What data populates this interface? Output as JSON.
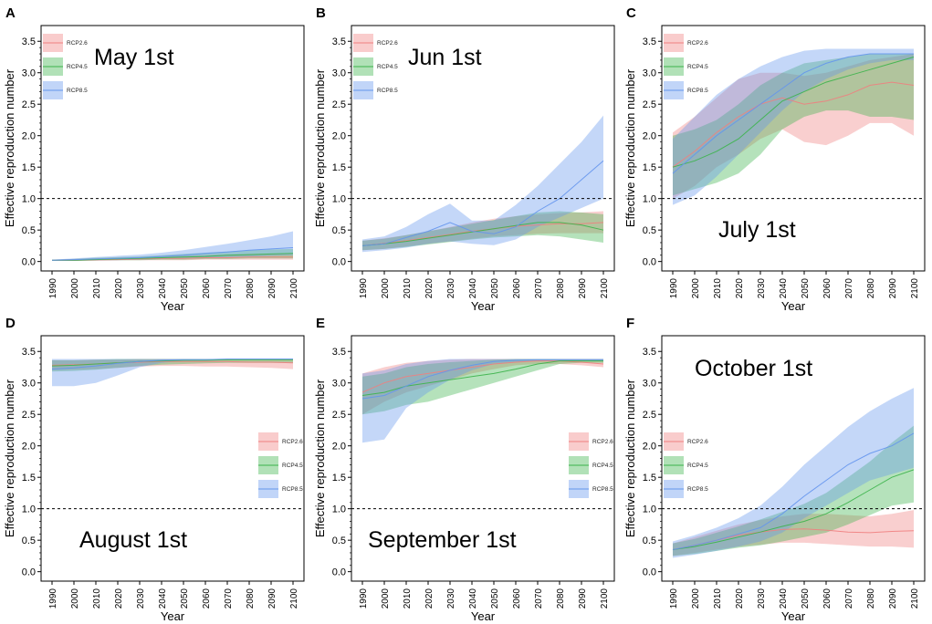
{
  "colors": {
    "RCP2.6": "#f08080",
    "RCP4.5": "#3cb44b",
    "RCP8.5": "#6495ed",
    "axis": "#000000",
    "threshold": "#000000"
  },
  "chart_data": [
    {
      "type": "area",
      "letter": "A",
      "annotation": "May 1st",
      "legend_position": "top-left",
      "xlabel": "Year",
      "ylabel": "Effective reproduction number",
      "xlim": [
        1985,
        2105
      ],
      "ylim": [
        -0.15,
        3.75
      ],
      "xticks": [
        1990,
        2000,
        2010,
        2020,
        2030,
        2040,
        2050,
        2060,
        2070,
        2080,
        2090,
        2100
      ],
      "yticks": [
        "0.0",
        "0.5",
        "1.0",
        "1.5",
        "2.0",
        "2.5",
        "3.0",
        "3.5"
      ],
      "threshold": 1.0,
      "x": [
        1990,
        2000,
        2010,
        2020,
        2030,
        2040,
        2050,
        2060,
        2070,
        2080,
        2090,
        2100
      ],
      "series": [
        {
          "name": "RCP2.6",
          "mean": [
            0.02,
            0.02,
            0.03,
            0.03,
            0.04,
            0.05,
            0.05,
            0.06,
            0.06,
            0.07,
            0.07,
            0.07
          ],
          "lower": [
            0.01,
            0.01,
            0.01,
            0.02,
            0.02,
            0.02,
            0.02,
            0.03,
            0.03,
            0.03,
            0.03,
            0.03
          ],
          "upper": [
            0.03,
            0.04,
            0.05,
            0.06,
            0.07,
            0.08,
            0.09,
            0.1,
            0.11,
            0.12,
            0.12,
            0.12
          ]
        },
        {
          "name": "RCP4.5",
          "mean": [
            0.02,
            0.02,
            0.03,
            0.04,
            0.05,
            0.06,
            0.07,
            0.08,
            0.1,
            0.11,
            0.12,
            0.13
          ],
          "lower": [
            0.01,
            0.01,
            0.02,
            0.02,
            0.02,
            0.03,
            0.03,
            0.04,
            0.04,
            0.05,
            0.05,
            0.05
          ],
          "upper": [
            0.03,
            0.04,
            0.06,
            0.07,
            0.08,
            0.1,
            0.12,
            0.14,
            0.16,
            0.18,
            0.19,
            0.2
          ]
        },
        {
          "name": "RCP8.5",
          "mean": [
            0.02,
            0.03,
            0.04,
            0.05,
            0.06,
            0.08,
            0.1,
            0.13,
            0.15,
            0.18,
            0.2,
            0.22
          ],
          "lower": [
            0.01,
            0.01,
            0.02,
            0.02,
            0.03,
            0.04,
            0.05,
            0.06,
            0.07,
            0.08,
            0.09,
            0.1
          ],
          "upper": [
            0.03,
            0.05,
            0.07,
            0.09,
            0.11,
            0.14,
            0.18,
            0.23,
            0.28,
            0.34,
            0.4,
            0.48
          ]
        }
      ]
    },
    {
      "type": "area",
      "letter": "B",
      "annotation": "Jun 1st",
      "legend_position": "top-left",
      "xlabel": "Year",
      "ylabel": "Effective reproduction number",
      "xlim": [
        1985,
        2105
      ],
      "ylim": [
        -0.15,
        3.75
      ],
      "xticks": [
        1990,
        2000,
        2010,
        2020,
        2030,
        2040,
        2050,
        2060,
        2070,
        2080,
        2090,
        2100
      ],
      "yticks": [
        "0.0",
        "0.5",
        "1.0",
        "1.5",
        "2.0",
        "2.5",
        "3.0",
        "3.5"
      ],
      "threshold": 1.0,
      "x": [
        1990,
        2000,
        2010,
        2020,
        2030,
        2040,
        2050,
        2060,
        2070,
        2080,
        2090,
        2100
      ],
      "series": [
        {
          "name": "RCP2.6",
          "mean": [
            0.25,
            0.29,
            0.33,
            0.38,
            0.43,
            0.48,
            0.52,
            0.56,
            0.58,
            0.6,
            0.6,
            0.62
          ],
          "lower": [
            0.18,
            0.2,
            0.24,
            0.28,
            0.32,
            0.36,
            0.4,
            0.42,
            0.44,
            0.45,
            0.45,
            0.45
          ],
          "upper": [
            0.33,
            0.37,
            0.42,
            0.48,
            0.55,
            0.62,
            0.68,
            0.72,
            0.75,
            0.77,
            0.78,
            0.8
          ]
        },
        {
          "name": "RCP4.5",
          "mean": [
            0.25,
            0.28,
            0.32,
            0.37,
            0.42,
            0.47,
            0.52,
            0.57,
            0.62,
            0.62,
            0.58,
            0.5
          ],
          "lower": [
            0.18,
            0.2,
            0.23,
            0.27,
            0.31,
            0.35,
            0.38,
            0.4,
            0.42,
            0.4,
            0.35,
            0.3
          ],
          "upper": [
            0.33,
            0.36,
            0.42,
            0.48,
            0.54,
            0.6,
            0.66,
            0.72,
            0.78,
            0.8,
            0.78,
            0.75
          ]
        },
        {
          "name": "RCP8.5",
          "mean": [
            0.25,
            0.28,
            0.38,
            0.48,
            0.62,
            0.48,
            0.44,
            0.55,
            0.8,
            1.0,
            1.3,
            1.6
          ],
          "lower": [
            0.15,
            0.18,
            0.22,
            0.28,
            0.32,
            0.28,
            0.26,
            0.35,
            0.55,
            0.7,
            0.85,
            1.0
          ],
          "upper": [
            0.35,
            0.4,
            0.55,
            0.75,
            0.92,
            0.65,
            0.65,
            0.9,
            1.2,
            1.55,
            1.9,
            2.32
          ]
        }
      ]
    },
    {
      "type": "area",
      "letter": "C",
      "annotation": "July 1st",
      "legend_position": "top-left",
      "xlabel": "Year",
      "ylabel": "Effective reproduction number",
      "xlim": [
        1985,
        2105
      ],
      "ylim": [
        -0.15,
        3.75
      ],
      "xticks": [
        1990,
        2000,
        2010,
        2020,
        2030,
        2040,
        2050,
        2060,
        2070,
        2080,
        2090,
        2100
      ],
      "yticks": [
        "0.0",
        "0.5",
        "1.0",
        "1.5",
        "2.0",
        "2.5",
        "3.0",
        "3.5"
      ],
      "threshold": 1.0,
      "x": [
        1990,
        2000,
        2010,
        2020,
        2030,
        2040,
        2050,
        2060,
        2070,
        2080,
        2090,
        2100
      ],
      "series": [
        {
          "name": "RCP2.6",
          "mean": [
            1.5,
            1.75,
            2.05,
            2.3,
            2.5,
            2.6,
            2.5,
            2.55,
            2.65,
            2.8,
            2.85,
            2.8
          ],
          "lower": [
            1.0,
            1.2,
            1.5,
            1.7,
            1.95,
            2.1,
            1.9,
            1.85,
            2.0,
            2.2,
            2.2,
            2.0
          ],
          "upper": [
            2.05,
            2.3,
            2.6,
            2.9,
            3.0,
            3.0,
            2.95,
            3.0,
            3.1,
            3.2,
            3.25,
            3.3
          ]
        },
        {
          "name": "RCP4.5",
          "mean": [
            1.5,
            1.6,
            1.75,
            1.95,
            2.25,
            2.55,
            2.7,
            2.85,
            2.95,
            3.05,
            3.15,
            3.25
          ],
          "lower": [
            1.05,
            1.15,
            1.25,
            1.4,
            1.7,
            2.1,
            2.3,
            2.4,
            2.4,
            2.3,
            2.3,
            2.25
          ],
          "upper": [
            2.0,
            2.1,
            2.25,
            2.5,
            2.8,
            3.0,
            3.15,
            3.2,
            3.25,
            3.3,
            3.3,
            3.3
          ]
        },
        {
          "name": "RCP8.5",
          "mean": [
            1.4,
            1.7,
            2.0,
            2.25,
            2.5,
            2.75,
            3.0,
            3.15,
            3.25,
            3.3,
            3.3,
            3.3
          ],
          "lower": [
            0.9,
            1.05,
            1.35,
            1.7,
            2.05,
            2.4,
            2.7,
            2.9,
            3.05,
            3.15,
            3.2,
            3.2
          ],
          "upper": [
            1.95,
            2.3,
            2.65,
            2.9,
            3.1,
            3.25,
            3.35,
            3.38,
            3.38,
            3.38,
            3.38,
            3.38
          ]
        }
      ]
    },
    {
      "type": "area",
      "letter": "D",
      "annotation": "August 1st",
      "legend_position": "right",
      "xlabel": "Year",
      "ylabel": "Effective reproduction number",
      "xlim": [
        1985,
        2105
      ],
      "ylim": [
        -0.15,
        3.75
      ],
      "xticks": [
        1990,
        2000,
        2010,
        2020,
        2030,
        2040,
        2050,
        2060,
        2070,
        2080,
        2090,
        2100
      ],
      "yticks": [
        "0.0",
        "0.5",
        "1.0",
        "1.5",
        "2.0",
        "2.5",
        "3.0",
        "3.5"
      ],
      "threshold": 1.0,
      "x": [
        1990,
        2000,
        2010,
        2020,
        2030,
        2040,
        2050,
        2060,
        2070,
        2080,
        2090,
        2100
      ],
      "series": [
        {
          "name": "RCP2.6",
          "mean": [
            3.28,
            3.29,
            3.3,
            3.32,
            3.33,
            3.34,
            3.34,
            3.34,
            3.34,
            3.33,
            3.33,
            3.32
          ],
          "lower": [
            3.2,
            3.21,
            3.22,
            3.24,
            3.26,
            3.27,
            3.27,
            3.26,
            3.26,
            3.25,
            3.24,
            3.22
          ],
          "upper": [
            3.36,
            3.36,
            3.37,
            3.37,
            3.38,
            3.38,
            3.38,
            3.38,
            3.38,
            3.38,
            3.38,
            3.38
          ]
        },
        {
          "name": "RCP4.5",
          "mean": [
            3.27,
            3.28,
            3.3,
            3.32,
            3.34,
            3.35,
            3.36,
            3.36,
            3.37,
            3.37,
            3.37,
            3.37
          ],
          "lower": [
            3.18,
            3.19,
            3.21,
            3.24,
            3.27,
            3.29,
            3.3,
            3.31,
            3.32,
            3.32,
            3.32,
            3.32
          ],
          "upper": [
            3.36,
            3.36,
            3.37,
            3.38,
            3.38,
            3.38,
            3.38,
            3.38,
            3.38,
            3.38,
            3.38,
            3.38
          ]
        },
        {
          "name": "RCP8.5",
          "mean": [
            3.22,
            3.24,
            3.27,
            3.31,
            3.34,
            3.36,
            3.37,
            3.37,
            3.38,
            3.38,
            3.38,
            3.38
          ],
          "lower": [
            2.95,
            2.95,
            3.0,
            3.12,
            3.25,
            3.32,
            3.35,
            3.36,
            3.37,
            3.37,
            3.37,
            3.37
          ],
          "upper": [
            3.38,
            3.38,
            3.38,
            3.38,
            3.38,
            3.38,
            3.38,
            3.38,
            3.38,
            3.38,
            3.38,
            3.38
          ]
        }
      ]
    },
    {
      "type": "area",
      "letter": "E",
      "annotation": "September 1st",
      "legend_position": "right",
      "xlabel": "Year",
      "ylabel": "Effective reproduction number",
      "xlim": [
        1985,
        2105
      ],
      "ylim": [
        -0.15,
        3.75
      ],
      "xticks": [
        1990,
        2000,
        2010,
        2020,
        2030,
        2040,
        2050,
        2060,
        2070,
        2080,
        2090,
        2100
      ],
      "yticks": [
        "0.0",
        "0.5",
        "1.0",
        "1.5",
        "2.0",
        "2.5",
        "3.0",
        "3.5"
      ],
      "threshold": 1.0,
      "x": [
        1990,
        2000,
        2010,
        2020,
        2030,
        2040,
        2050,
        2060,
        2070,
        2080,
        2090,
        2100
      ],
      "series": [
        {
          "name": "RCP2.6",
          "mean": [
            2.85,
            3.0,
            3.1,
            3.15,
            3.2,
            3.25,
            3.3,
            3.33,
            3.35,
            3.35,
            3.33,
            3.3
          ],
          "lower": [
            2.5,
            2.7,
            2.85,
            2.95,
            3.05,
            3.15,
            3.22,
            3.28,
            3.3,
            3.3,
            3.28,
            3.25
          ],
          "upper": [
            3.15,
            3.25,
            3.32,
            3.35,
            3.37,
            3.38,
            3.38,
            3.38,
            3.38,
            3.38,
            3.38,
            3.38
          ]
        },
        {
          "name": "RCP4.5",
          "mean": [
            2.8,
            2.85,
            2.95,
            3.0,
            3.05,
            3.1,
            3.15,
            3.22,
            3.3,
            3.35,
            3.35,
            3.35
          ],
          "lower": [
            2.5,
            2.55,
            2.65,
            2.7,
            2.8,
            2.9,
            3.0,
            3.1,
            3.2,
            3.3,
            3.32,
            3.32
          ],
          "upper": [
            3.1,
            3.15,
            3.25,
            3.3,
            3.33,
            3.35,
            3.37,
            3.38,
            3.38,
            3.38,
            3.38,
            3.38
          ]
        },
        {
          "name": "RCP8.5",
          "mean": [
            2.75,
            2.8,
            2.95,
            3.1,
            3.2,
            3.28,
            3.34,
            3.36,
            3.37,
            3.37,
            3.37,
            3.37
          ],
          "lower": [
            2.05,
            2.1,
            2.6,
            2.85,
            3.05,
            3.2,
            3.3,
            3.33,
            3.35,
            3.35,
            3.35,
            3.35
          ],
          "upper": [
            3.15,
            3.2,
            3.3,
            3.35,
            3.38,
            3.38,
            3.38,
            3.38,
            3.38,
            3.38,
            3.38,
            3.38
          ]
        }
      ]
    },
    {
      "type": "area",
      "letter": "F",
      "annotation": "October 1st",
      "legend_position": "left",
      "xlabel": "Year",
      "ylabel": "Effective reproduction number",
      "xlim": [
        1985,
        2105
      ],
      "ylim": [
        -0.15,
        3.75
      ],
      "xticks": [
        1990,
        2000,
        2010,
        2020,
        2030,
        2040,
        2050,
        2060,
        2070,
        2080,
        2090,
        2100
      ],
      "yticks": [
        "0.0",
        "0.5",
        "1.0",
        "1.5",
        "2.0",
        "2.5",
        "3.0",
        "3.5"
      ],
      "threshold": 1.0,
      "x": [
        1990,
        2000,
        2010,
        2020,
        2030,
        2040,
        2050,
        2060,
        2070,
        2080,
        2090,
        2100
      ],
      "series": [
        {
          "name": "RCP2.6",
          "mean": [
            0.35,
            0.42,
            0.5,
            0.58,
            0.63,
            0.67,
            0.68,
            0.66,
            0.63,
            0.62,
            0.64,
            0.65
          ],
          "lower": [
            0.25,
            0.3,
            0.35,
            0.4,
            0.43,
            0.46,
            0.46,
            0.44,
            0.42,
            0.4,
            0.4,
            0.38
          ],
          "upper": [
            0.45,
            0.55,
            0.65,
            0.75,
            0.82,
            0.88,
            0.92,
            0.92,
            0.9,
            0.88,
            0.92,
            0.98
          ]
        },
        {
          "name": "RCP4.5",
          "mean": [
            0.35,
            0.4,
            0.47,
            0.55,
            0.63,
            0.72,
            0.8,
            0.92,
            1.1,
            1.3,
            1.5,
            1.62
          ],
          "lower": [
            0.25,
            0.28,
            0.33,
            0.38,
            0.42,
            0.48,
            0.55,
            0.62,
            0.75,
            0.9,
            1.05,
            1.1
          ],
          "upper": [
            0.45,
            0.52,
            0.62,
            0.72,
            0.83,
            0.95,
            1.08,
            1.25,
            1.5,
            1.75,
            2.05,
            2.32
          ]
        },
        {
          "name": "RCP8.5",
          "mean": [
            0.35,
            0.42,
            0.5,
            0.6,
            0.7,
            0.92,
            1.2,
            1.45,
            1.7,
            1.88,
            2.0,
            2.2
          ],
          "lower": [
            0.22,
            0.27,
            0.33,
            0.4,
            0.48,
            0.62,
            0.85,
            1.05,
            1.25,
            1.45,
            1.55,
            1.65
          ],
          "upper": [
            0.48,
            0.58,
            0.7,
            0.85,
            1.05,
            1.35,
            1.7,
            2.0,
            2.3,
            2.55,
            2.75,
            2.92
          ]
        }
      ]
    }
  ]
}
